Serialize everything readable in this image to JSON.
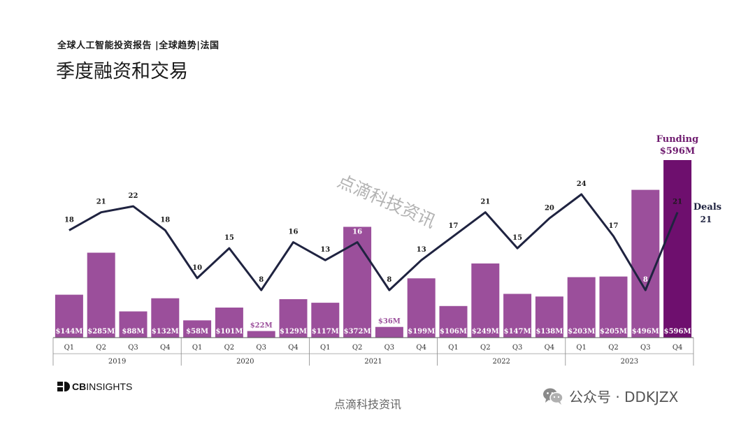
{
  "header": {
    "subtitle": "全球人工智能投资报告 |全球趋势|法国",
    "title": "季度融资和交易"
  },
  "watermark": {
    "diagonal": "点滴科技资讯",
    "footer": "点滴科技资讯"
  },
  "logo": {
    "text_bold": "CB",
    "text": "INSIGHTS",
    "icon": "cb-insights-logo-icon"
  },
  "wechat": {
    "label": "公众号 · DDKJZX",
    "icon": "wechat-icon"
  },
  "colors": {
    "bar": "#9b4f9b",
    "bar_highlight": "#6e0f6e",
    "line": "#1f2340",
    "funding_label": "#6e1a6e"
  },
  "chart_data": {
    "type": "bar+line",
    "categories": [
      "Q1",
      "Q2",
      "Q3",
      "Q4",
      "Q1",
      "Q2",
      "Q3",
      "Q4",
      "Q1",
      "Q2",
      "Q3",
      "Q4",
      "Q1",
      "Q2",
      "Q3",
      "Q4",
      "Q1",
      "Q2",
      "Q3",
      "Q4"
    ],
    "years": [
      "2019",
      "2020",
      "2021",
      "2022",
      "2023"
    ],
    "series": [
      {
        "name": "Funding",
        "type": "bar",
        "values": [
          144,
          285,
          88,
          132,
          58,
          101,
          22,
          129,
          117,
          372,
          36,
          199,
          106,
          249,
          147,
          138,
          203,
          205,
          496,
          596
        ],
        "labels": [
          "$144M",
          "$285M",
          "$88M",
          "$132M",
          "$58M",
          "$101M",
          "$22M",
          "$129M",
          "$117M",
          "$372M",
          "$36M",
          "$199M",
          "$106M",
          "$249M",
          "$147M",
          "$138M",
          "$203M",
          "$205M",
          "$496M",
          "$596M"
        ],
        "unit": "$M"
      },
      {
        "name": "Deals",
        "type": "line",
        "values": [
          18,
          21,
          22,
          18,
          10,
          15,
          8,
          16,
          13,
          16,
          8,
          13,
          17,
          21,
          15,
          20,
          24,
          17,
          8,
          21
        ]
      }
    ],
    "legend": {
      "funding_title": "Funding",
      "funding_value": "$596M",
      "deals_title": "Deals",
      "deals_value": "21"
    }
  }
}
